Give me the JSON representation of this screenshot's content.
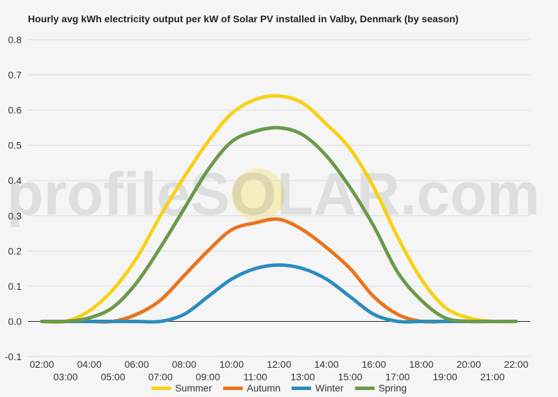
{
  "chart_data": {
    "type": "line",
    "title": "Hourly avg kWh electricity output per kW of Solar PV installed in Valby, Denmark (by season)",
    "watermark": "profileSOLAR.com",
    "xlabel": "",
    "ylabel": "",
    "ylim": [
      -0.1,
      0.8
    ],
    "yticks": [
      "0.8",
      "0.7",
      "0.6",
      "0.5",
      "0.4",
      "0.3",
      "0.2",
      "0.1",
      "0.0",
      "-0.1"
    ],
    "x": [
      "02:00",
      "03:00",
      "04:00",
      "05:00",
      "06:00",
      "07:00",
      "08:00",
      "09:00",
      "10:00",
      "11:00",
      "12:00",
      "13:00",
      "14:00",
      "15:00",
      "16:00",
      "17:00",
      "18:00",
      "19:00",
      "20:00",
      "21:00",
      "22:00"
    ],
    "grid": true,
    "legend_position": "bottom",
    "series": [
      {
        "name": "Summer",
        "color": "#f7d117",
        "values": [
          0.0,
          0.0,
          0.03,
          0.09,
          0.18,
          0.3,
          0.41,
          0.51,
          0.59,
          0.63,
          0.64,
          0.62,
          0.56,
          0.49,
          0.38,
          0.24,
          0.12,
          0.04,
          0.01,
          0.0,
          0.0
        ]
      },
      {
        "name": "Autumn",
        "color": "#e8741e",
        "values": [
          0.0,
          0.0,
          0.0,
          0.0,
          0.02,
          0.06,
          0.13,
          0.2,
          0.26,
          0.28,
          0.29,
          0.26,
          0.21,
          0.15,
          0.07,
          0.02,
          0.0,
          0.0,
          0.0,
          0.0,
          0.0
        ]
      },
      {
        "name": "Winter",
        "color": "#2b8cbe",
        "values": [
          0.0,
          0.0,
          0.0,
          0.0,
          0.0,
          0.0,
          0.02,
          0.07,
          0.12,
          0.15,
          0.16,
          0.15,
          0.12,
          0.07,
          0.02,
          0.0,
          0.0,
          0.0,
          0.0,
          0.0,
          0.0
        ]
      },
      {
        "name": "Spring",
        "color": "#6a9a4a",
        "values": [
          0.0,
          0.0,
          0.01,
          0.04,
          0.11,
          0.21,
          0.32,
          0.43,
          0.51,
          0.54,
          0.55,
          0.53,
          0.47,
          0.38,
          0.27,
          0.14,
          0.06,
          0.01,
          0.0,
          0.0,
          0.0
        ]
      }
    ]
  }
}
